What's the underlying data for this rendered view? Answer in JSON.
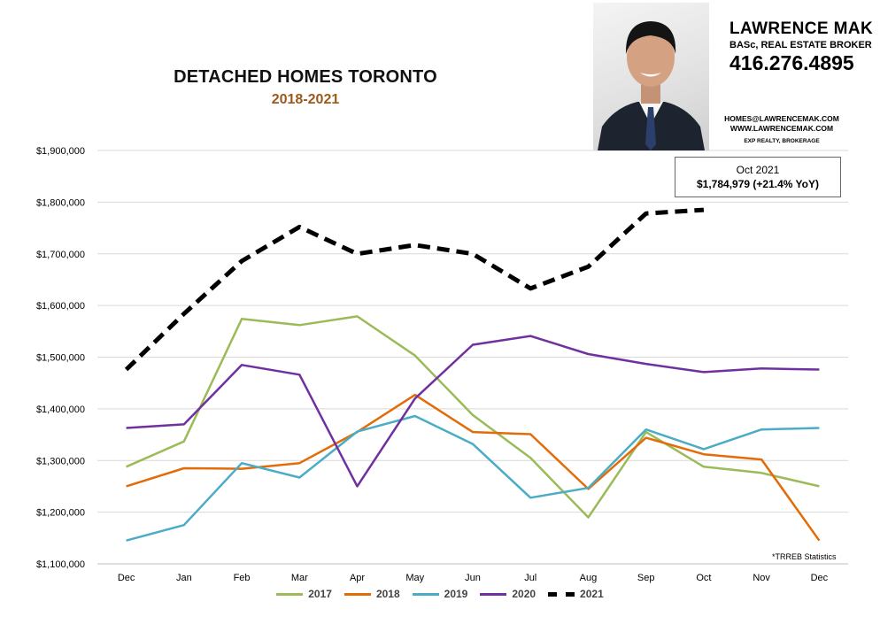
{
  "header": {
    "title": "DETACHED HOMES TORONTO",
    "subtitle": "2018-2021"
  },
  "agent": {
    "name": "LAWRENCE MAK",
    "title": "BASc, REAL ESTATE BROKER",
    "phone": "416.276.4895",
    "email": "HOMES@LAWRENCEMAK.COM",
    "website": "WWW.LAWRENCEMAK.COM",
    "brokerage": "EXP REALTY, BROKERAGE"
  },
  "callout": {
    "line1": "Oct 2021",
    "line2": "$1,784,979 (+21.4%  YoY)"
  },
  "source_note": "*TRREB Statistics",
  "chart_data": {
    "type": "line",
    "title": "DETACHED HOMES TORONTO",
    "subtitle": "2018-2021",
    "categories": [
      "Dec",
      "Jan",
      "Feb",
      "Mar",
      "Apr",
      "May",
      "Jun",
      "Jul",
      "Aug",
      "Sep",
      "Oct",
      "Nov",
      "Dec"
    ],
    "ylim": [
      1100000,
      1900000
    ],
    "yticks": [
      1100000,
      1200000,
      1300000,
      1400000,
      1500000,
      1600000,
      1700000,
      1800000,
      1900000
    ],
    "ytick_labels": [
      "$1,100,000",
      "$1,200,000",
      "$1,300,000",
      "$1,400,000",
      "$1,500,000",
      "$1,600,000",
      "$1,700,000",
      "$1,800,000",
      "$1,900,000"
    ],
    "grid": true,
    "legend": "bottom",
    "series": [
      {
        "name": "2017",
        "color": "#9bbb59",
        "dashed": false,
        "values": [
          1288000,
          1337000,
          1574000,
          1562000,
          1579000,
          1503000,
          1388000,
          1305000,
          1190000,
          1355000,
          1288000,
          1276000,
          1250000
        ]
      },
      {
        "name": "2018",
        "color": "#e36c0a",
        "dashed": false,
        "values": [
          1250000,
          1285000,
          1284000,
          1295000,
          1355000,
          1427000,
          1355000,
          1351000,
          1245000,
          1344000,
          1312000,
          1302000,
          1145000
        ]
      },
      {
        "name": "2019",
        "color": "#4bacc6",
        "dashed": false,
        "values": [
          1145000,
          1175000,
          1295000,
          1267000,
          1356000,
          1386000,
          1332000,
          1228000,
          1247000,
          1360000,
          1322000,
          1360000,
          1363000
        ]
      },
      {
        "name": "2020",
        "color": "#7030a0",
        "dashed": false,
        "values": [
          1363000,
          1370000,
          1485000,
          1466000,
          1250000,
          1420000,
          1524000,
          1541000,
          1506000,
          1487000,
          1471000,
          1478000,
          1476000
        ]
      },
      {
        "name": "2021",
        "color": "#000000",
        "dashed": true,
        "values": [
          1476000,
          1584000,
          1686000,
          1752000,
          1700000,
          1717000,
          1700000,
          1633000,
          1675000,
          1778000,
          1784979,
          null,
          null
        ]
      }
    ]
  }
}
